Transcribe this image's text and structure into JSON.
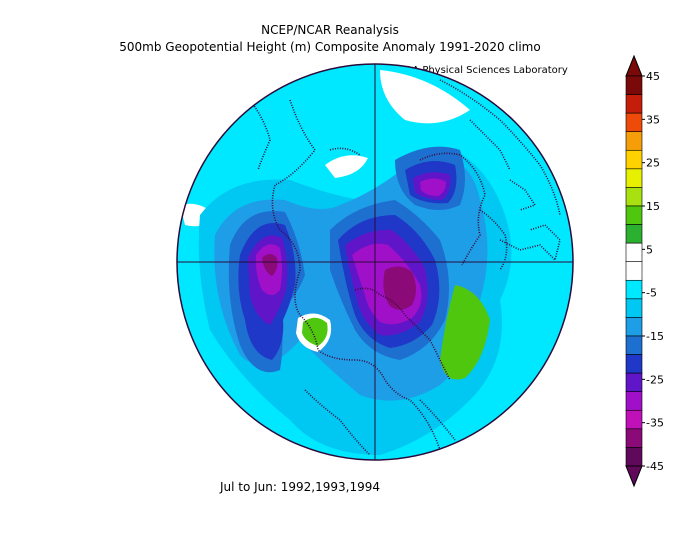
{
  "header": {
    "title": "NCEP/NCAR Reanalysis",
    "subtitle": "500mb Geopotential Height (m) Composite Anomaly 1991-2020 climo",
    "credit": "NOAA Physical Sciences Laboratory"
  },
  "footer": {
    "period": "Jul to Jun: 1992,1993,1994"
  },
  "colorbar": {
    "labels": [
      "45",
      "35",
      "25",
      "15",
      "5",
      "-5",
      "-15",
      "-25",
      "-35",
      "-45"
    ],
    "colors": [
      "#7a0a0a",
      "#c41e0a",
      "#ee4a0a",
      "#f59e0a",
      "#ffd200",
      "#e6f000",
      "#a8e010",
      "#4fc70f",
      "#2bb030",
      "#ffffff",
      "#ffffff",
      "#00e8ff",
      "#00c8f2",
      "#1f9ee8",
      "#1e70d0",
      "#2038c8",
      "#6016c8",
      "#a010c8",
      "#c010b8",
      "#8a0a78",
      "#60085a"
    ]
  },
  "map": {
    "projection": "north polar stereographic",
    "colors": {
      "background": "#00e8ff",
      "band1": "#00c8f2",
      "band2": "#1f9ee8",
      "band3": "#1e70d0",
      "band4": "#2038c8",
      "band5": "#6016c8",
      "band6": "#a010c8",
      "band7": "#8a0a78",
      "positive": "#4fc70f",
      "outline": "#3a0a3a",
      "grid": "#2a0a3a"
    }
  }
}
